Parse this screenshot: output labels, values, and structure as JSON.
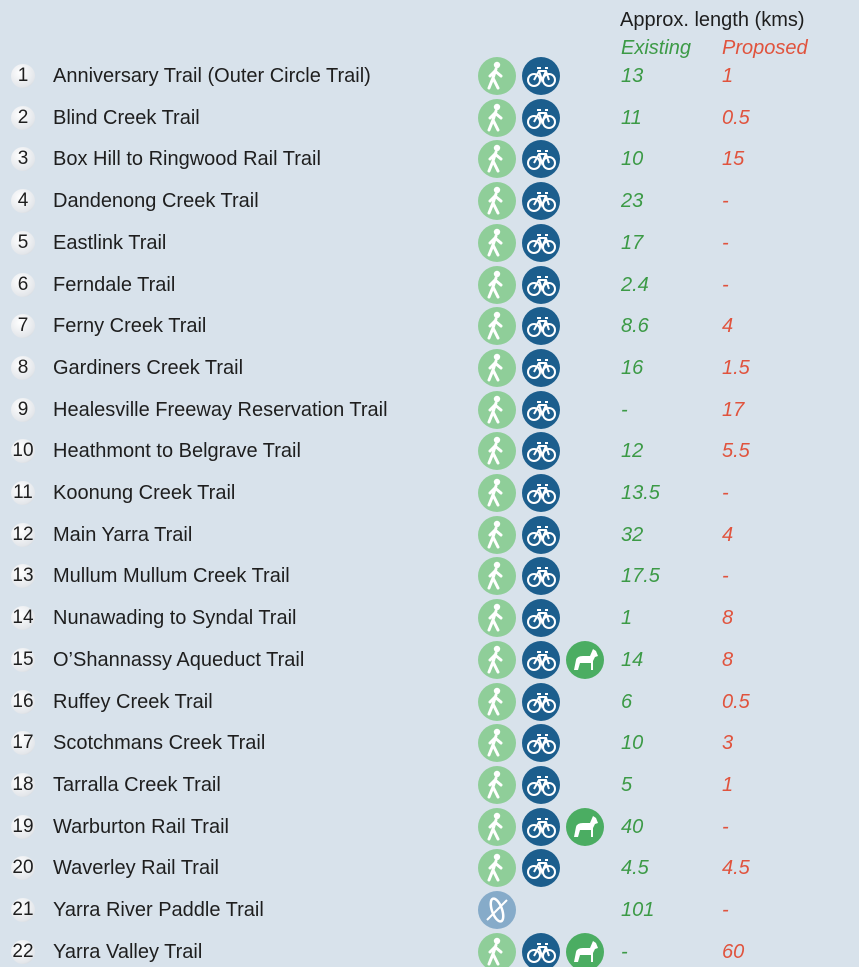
{
  "header": {
    "length_label": "Approx. length (kms)",
    "existing_label": "Existing",
    "proposed_label": "Proposed"
  },
  "rows": [
    [
      1,
      "Anniversary Trail (Outer Circle Trail)",
      13,
      1
    ],
    [
      2,
      "Blind Creek Trail",
      11,
      0.5
    ],
    [
      3,
      "Box Hill to Ringwood Rail Trail",
      10,
      15
    ],
    [
      4,
      "Dandenong Creek Trail",
      23,
      "-"
    ],
    [
      5,
      "Eastlink Trail",
      17,
      "-"
    ],
    [
      6,
      "Ferndale Trail",
      2.4,
      "-"
    ],
    [
      7,
      "Ferny Creek Trail",
      8.6,
      4
    ],
    [
      8,
      "Gardiners Creek Trail",
      16,
      1.5
    ],
    [
      9,
      "Healesville Freeway Reservation Trail",
      "-",
      17
    ],
    [
      10,
      "Heathmont to Belgrave Trail",
      12,
      5.5
    ],
    [
      11,
      "Koonung Creek Trail",
      13.5,
      "-"
    ],
    [
      12,
      "Main Yarra Trail",
      32,
      4
    ],
    [
      13,
      "Mullum Mullum Creek Trail",
      17.5,
      "-"
    ],
    [
      14,
      "Nunawading to Syndal Trail",
      1,
      8
    ],
    [
      15,
      "O’Shannassy Aqueduct Trail",
      14,
      8
    ],
    [
      16,
      "Ruffey Creek Trail",
      6,
      0.5
    ],
    [
      17,
      "Scotchmans Creek Trail",
      10,
      3
    ],
    [
      18,
      "Tarralla Creek Trail",
      5,
      1
    ],
    [
      19,
      "Warburton Rail Trail",
      40,
      "-"
    ],
    [
      20,
      "Waverley Rail Trail",
      4.5,
      4.5
    ],
    [
      21,
      "Yarra River Paddle Trail",
      101,
      "-"
    ],
    [
      22,
      "Yarra Valley Trail",
      "-",
      60
    ]
  ]
}
